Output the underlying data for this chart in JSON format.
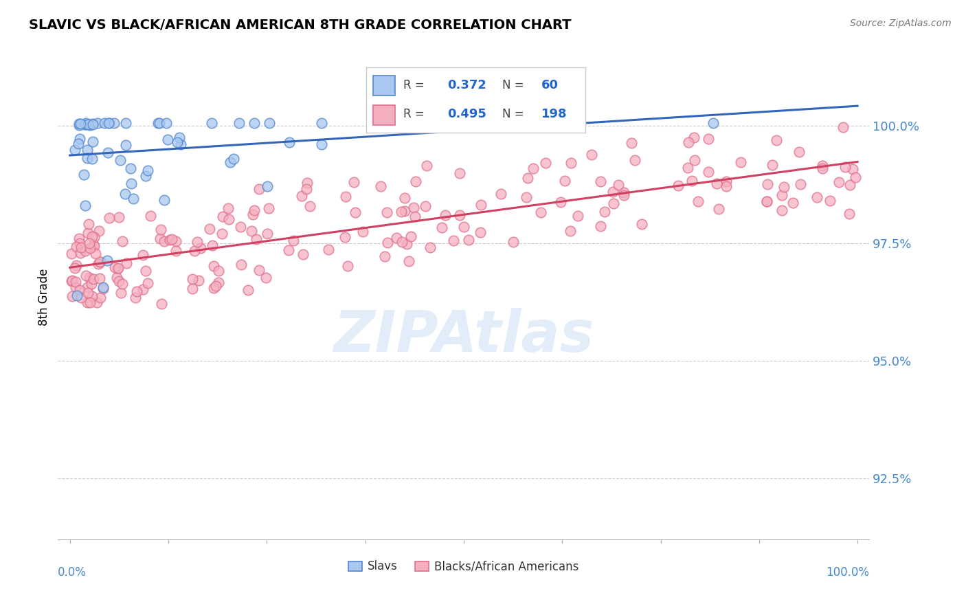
{
  "title": "SLAVIC VS BLACK/AFRICAN AMERICAN 8TH GRADE CORRELATION CHART",
  "source": "Source: ZipAtlas.com",
  "ylabel": "8th Grade",
  "y_ticks": [
    92.5,
    95.0,
    97.5,
    100.0
  ],
  "y_tick_labels": [
    "92.5%",
    "95.0%",
    "97.5%",
    "100.0%"
  ],
  "x_ticks": [
    0.0,
    12.5,
    25.0,
    37.5,
    50.0,
    62.5,
    75.0,
    87.5,
    100.0
  ],
  "ylim": [
    91.2,
    101.5
  ],
  "xlim": [
    -1.5,
    101.5
  ],
  "slavic_R": 0.372,
  "slavic_N": 60,
  "black_R": 0.495,
  "black_N": 198,
  "slavic_color": "#a8c8f0",
  "slavic_edge_color": "#5588cc",
  "slavic_line_color": "#3366bb",
  "black_color": "#f5b0c0",
  "black_edge_color": "#e07090",
  "black_line_color": "#d04060",
  "watermark_color": "#c8ddf5",
  "tick_color": "#4488cc",
  "title_fontsize": 14,
  "source_fontsize": 10,
  "legend_value_color": "#2266cc"
}
